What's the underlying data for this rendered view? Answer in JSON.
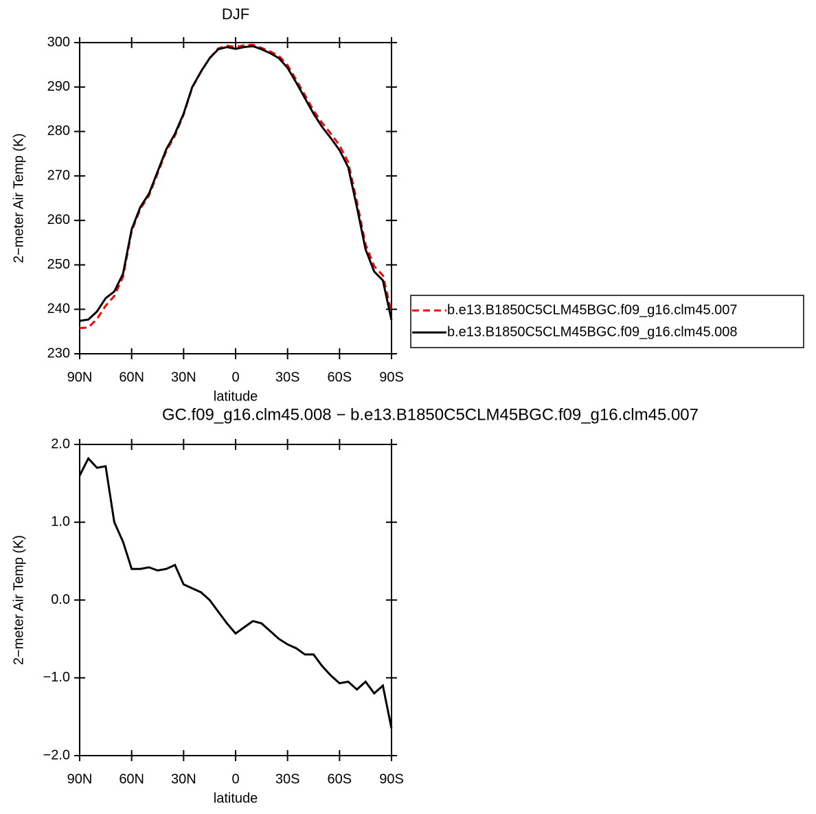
{
  "chart_data": [
    {
      "type": "line",
      "title": "DJF",
      "xlabel": "latitude",
      "ylabel": "2−meter Air Temp (K)",
      "x": [
        90,
        85,
        80,
        75,
        70,
        65,
        60,
        55,
        50,
        45,
        40,
        35,
        30,
        25,
        20,
        15,
        10,
        5,
        0,
        -5,
        -10,
        -15,
        -20,
        -25,
        -30,
        -35,
        -40,
        -45,
        -50,
        -55,
        -60,
        -65,
        -70,
        -75,
        -80,
        -85,
        -90
      ],
      "series": [
        {
          "name": "b.e13.B1850C5CLM45BGC.f09_g16.clm45.007",
          "color": "#ff0000",
          "style": "dashed",
          "values": [
            235.8,
            235.9,
            237.8,
            240.8,
            243.0,
            247.3,
            257.6,
            262.6,
            265.6,
            270.6,
            275.6,
            279.1,
            283.8,
            289.9,
            293.4,
            296.5,
            298.7,
            299.3,
            299.0,
            299.4,
            299.5,
            298.8,
            298.0,
            297.0,
            294.9,
            291.6,
            288.2,
            284.7,
            281.9,
            279.5,
            276.9,
            273.1,
            264.2,
            254.6,
            249.7,
            247.6,
            239.3
          ]
        },
        {
          "name": "b.e13.B1850C5CLM45BGC.f09_g16.clm45.008",
          "color": "#000000",
          "style": "solid",
          "values": [
            237.4,
            237.7,
            239.5,
            242.5,
            244.0,
            248.0,
            258.0,
            263.0,
            266.0,
            271.0,
            276.0,
            279.5,
            284.0,
            290.0,
            293.5,
            296.5,
            298.5,
            299.0,
            298.6,
            299.0,
            299.2,
            298.5,
            297.6,
            296.5,
            294.3,
            291.0,
            287.5,
            284.0,
            281.0,
            278.5,
            275.8,
            272.0,
            263.0,
            253.5,
            248.5,
            246.5,
            237.6
          ]
        }
      ],
      "xlim": [
        90,
        -90
      ],
      "xticks": [
        {
          "value": 90,
          "label": "90N"
        },
        {
          "value": 60,
          "label": "60N"
        },
        {
          "value": 30,
          "label": "30N"
        },
        0,
        {
          "value": -30,
          "label": "30S"
        },
        {
          "value": -60,
          "label": "60S"
        },
        {
          "value": -90,
          "label": "90S"
        }
      ],
      "ylim": [
        230,
        300
      ],
      "yticks": [
        230,
        240,
        250,
        260,
        270,
        280,
        290,
        300
      ],
      "legend": "right"
    },
    {
      "type": "line",
      "title": "GC.f09_g16.clm45.008 − b.e13.B1850C5CLM45BGC.f09_g16.clm45.007",
      "xlabel": "latitude",
      "ylabel": "2−meter Air Temp (K)",
      "x": [
        90,
        85,
        80,
        75,
        70,
        65,
        60,
        55,
        50,
        45,
        40,
        35,
        30,
        25,
        20,
        15,
        10,
        5,
        0,
        -5,
        -10,
        -15,
        -20,
        -25,
        -30,
        -35,
        -40,
        -45,
        -50,
        -55,
        -60,
        -65,
        -70,
        -75,
        -80,
        -85,
        -90
      ],
      "series": [
        {
          "color": "#000000",
          "style": "solid",
          "values": [
            1.6,
            1.82,
            1.7,
            1.72,
            1.0,
            0.75,
            0.4,
            0.4,
            0.42,
            0.38,
            0.4,
            0.45,
            0.2,
            0.15,
            0.1,
            0.0,
            -0.15,
            -0.3,
            -0.43,
            -0.35,
            -0.27,
            -0.3,
            -0.4,
            -0.5,
            -0.57,
            -0.62,
            -0.7,
            -0.7,
            -0.85,
            -0.97,
            -1.07,
            -1.05,
            -1.15,
            -1.05,
            -1.2,
            -1.1,
            -1.65
          ]
        }
      ],
      "xlim": [
        90,
        -90
      ],
      "xticks": [
        {
          "value": 90,
          "label": "90N"
        },
        {
          "value": 60,
          "label": "60N"
        },
        {
          "value": 30,
          "label": "30N"
        },
        0,
        {
          "value": -30,
          "label": "30S"
        },
        {
          "value": -60,
          "label": "60S"
        },
        {
          "value": -90,
          "label": "90S"
        }
      ],
      "ylim": [
        -2,
        2
      ],
      "yticks": [
        {
          "value": -2,
          "label": "−2.0"
        },
        {
          "value": -1,
          "label": "−1.0"
        },
        {
          "value": 0,
          "label": "0.0"
        },
        {
          "value": 1,
          "label": "1.0"
        },
        {
          "value": 2,
          "label": "2.0"
        }
      ]
    }
  ]
}
